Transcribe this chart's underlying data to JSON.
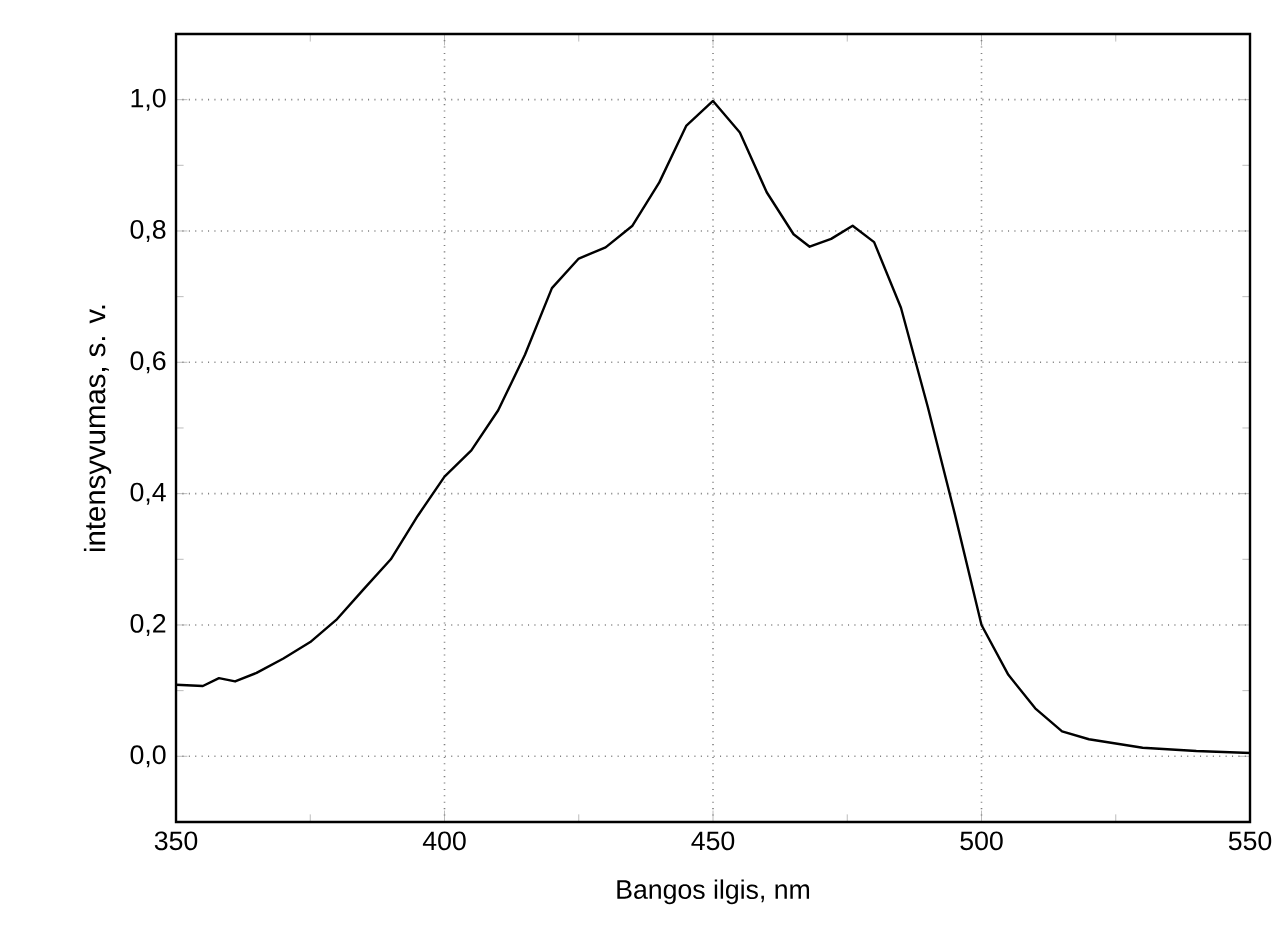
{
  "chart_data": {
    "type": "line",
    "xlabel": "Bangos ilgis, nm",
    "ylabel": "intensyvumas, s. v.",
    "xlim": [
      350,
      550
    ],
    "ylim": [
      -0.1,
      1.1
    ],
    "xticks": [
      350,
      400,
      450,
      500,
      550
    ],
    "yticks": [
      {
        "value": 0.0,
        "label": "0,0"
      },
      {
        "value": 0.2,
        "label": "0,2"
      },
      {
        "value": 0.4,
        "label": "0,4"
      },
      {
        "value": 0.6,
        "label": "0,6"
      },
      {
        "value": 0.8,
        "label": "0,8"
      },
      {
        "value": 1.0,
        "label": "1,0"
      }
    ],
    "grid": true,
    "marker": "none",
    "line_style": "solid",
    "series": [
      {
        "color": "#000000",
        "x": [
          350,
          355,
          358,
          361,
          365,
          370,
          375,
          380,
          385,
          390,
          395,
          400,
          405,
          410,
          415,
          420,
          425,
          430,
          435,
          440,
          445,
          450,
          455,
          460,
          465,
          468,
          472,
          476,
          480,
          485,
          490,
          495,
          500,
          505,
          510,
          515,
          520,
          530,
          540,
          550
        ],
        "values": [
          0.109,
          0.107,
          0.119,
          0.114,
          0.127,
          0.149,
          0.174,
          0.209,
          0.255,
          0.3,
          0.366,
          0.426,
          0.466,
          0.527,
          0.612,
          0.713,
          0.758,
          0.775,
          0.808,
          0.874,
          0.96,
          0.998,
          0.95,
          0.859,
          0.795,
          0.776,
          0.788,
          0.808,
          0.783,
          0.683,
          0.532,
          0.37,
          0.2,
          0.124,
          0.073,
          0.038,
          0.026,
          0.013,
          0.008,
          0.005
        ]
      }
    ]
  }
}
